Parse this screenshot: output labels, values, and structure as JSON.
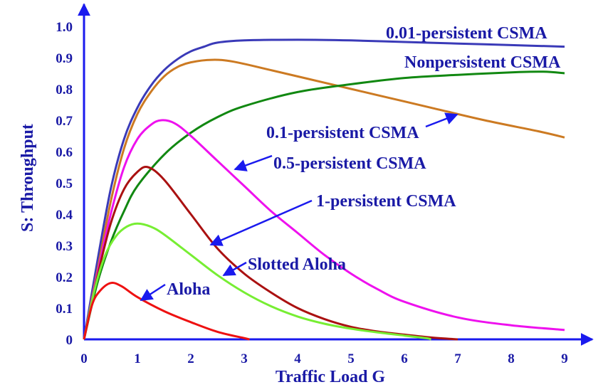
{
  "chart_data": {
    "type": "line",
    "title": "",
    "xlabel": "Traffic Load G",
    "ylabel": "S: Throughput",
    "xlim": [
      0,
      9.5
    ],
    "ylim": [
      0,
      1.05
    ],
    "x_ticks": [
      "0",
      "1",
      "2",
      "3",
      "4",
      "5",
      "6",
      "7",
      "8",
      "9"
    ],
    "y_ticks": [
      "0",
      "0.1",
      "0.2",
      "0.3",
      "0.4",
      "0.5",
      "0.6",
      "0.7",
      "0.8",
      "0.9",
      "1.0"
    ],
    "grid": false,
    "series": [
      {
        "name": "0.01-persistent CSMA",
        "color": "#3a3ab8",
        "points": [
          [
            0,
            0
          ],
          [
            0.25,
            0.25
          ],
          [
            0.5,
            0.48
          ],
          [
            0.75,
            0.64
          ],
          [
            1.0,
            0.74
          ],
          [
            1.25,
            0.81
          ],
          [
            1.5,
            0.86
          ],
          [
            1.75,
            0.895
          ],
          [
            2.0,
            0.92
          ],
          [
            2.25,
            0.935
          ],
          [
            2.5,
            0.948
          ],
          [
            3.0,
            0.955
          ],
          [
            4.0,
            0.957
          ],
          [
            5.0,
            0.955
          ],
          [
            6.0,
            0.95
          ],
          [
            7.0,
            0.945
          ],
          [
            8.0,
            0.94
          ],
          [
            9.0,
            0.935
          ]
        ]
      },
      {
        "name": "Nonpersistent CSMA",
        "color": "#cc7a22",
        "points": [
          [
            0,
            0
          ],
          [
            0.25,
            0.22
          ],
          [
            0.5,
            0.44
          ],
          [
            0.75,
            0.61
          ],
          [
            1.0,
            0.72
          ],
          [
            1.25,
            0.79
          ],
          [
            1.5,
            0.84
          ],
          [
            1.75,
            0.87
          ],
          [
            2.0,
            0.885
          ],
          [
            2.4,
            0.893
          ],
          [
            2.8,
            0.887
          ],
          [
            3.5,
            0.86
          ],
          [
            4.5,
            0.82
          ],
          [
            5.5,
            0.78
          ],
          [
            6.5,
            0.74
          ],
          [
            7.5,
            0.7
          ],
          [
            8.5,
            0.665
          ],
          [
            9.0,
            0.645
          ]
        ]
      },
      {
        "name": "0.1-persistent CSMA",
        "color": "#118811",
        "points": [
          [
            0,
            0
          ],
          [
            0.25,
            0.18
          ],
          [
            0.5,
            0.31
          ],
          [
            0.75,
            0.41
          ],
          [
            1.0,
            0.49
          ],
          [
            1.5,
            0.59
          ],
          [
            2.0,
            0.66
          ],
          [
            2.5,
            0.71
          ],
          [
            3.0,
            0.745
          ],
          [
            4.0,
            0.79
          ],
          [
            5.0,
            0.815
          ],
          [
            6.0,
            0.835
          ],
          [
            7.0,
            0.845
          ],
          [
            8.0,
            0.853
          ],
          [
            8.6,
            0.855
          ],
          [
            9.0,
            0.85
          ]
        ]
      },
      {
        "name": "0.5-persistent CSMA",
        "color": "#ee11ee",
        "points": [
          [
            0,
            0
          ],
          [
            0.25,
            0.21
          ],
          [
            0.5,
            0.4
          ],
          [
            0.75,
            0.55
          ],
          [
            1.0,
            0.64
          ],
          [
            1.25,
            0.685
          ],
          [
            1.45,
            0.7
          ],
          [
            1.7,
            0.69
          ],
          [
            2.0,
            0.65
          ],
          [
            2.5,
            0.57
          ],
          [
            3.0,
            0.49
          ],
          [
            3.5,
            0.41
          ],
          [
            4.0,
            0.34
          ],
          [
            4.5,
            0.27
          ],
          [
            5.0,
            0.21
          ],
          [
            5.5,
            0.16
          ],
          [
            6.0,
            0.12
          ],
          [
            7.0,
            0.07
          ],
          [
            8.0,
            0.045
          ],
          [
            9.0,
            0.03
          ]
        ]
      },
      {
        "name": "1-persistent CSMA",
        "color": "#aa1111",
        "points": [
          [
            0,
            0
          ],
          [
            0.25,
            0.2
          ],
          [
            0.5,
            0.37
          ],
          [
            0.75,
            0.48
          ],
          [
            1.0,
            0.535
          ],
          [
            1.2,
            0.55
          ],
          [
            1.5,
            0.51
          ],
          [
            2.0,
            0.4
          ],
          [
            2.5,
            0.29
          ],
          [
            3.0,
            0.21
          ],
          [
            3.5,
            0.15
          ],
          [
            4.0,
            0.1
          ],
          [
            4.5,
            0.065
          ],
          [
            5.0,
            0.04
          ],
          [
            5.5,
            0.025
          ],
          [
            6.0,
            0.015
          ],
          [
            6.5,
            0.006
          ],
          [
            7.0,
            0.0
          ]
        ]
      },
      {
        "name": "Slotted Aloha",
        "color": "#77ee33",
        "points": [
          [
            0,
            0
          ],
          [
            0.2,
            0.16
          ],
          [
            0.4,
            0.27
          ],
          [
            0.6,
            0.33
          ],
          [
            0.8,
            0.36
          ],
          [
            1.0,
            0.37
          ],
          [
            1.25,
            0.36
          ],
          [
            1.5,
            0.335
          ],
          [
            2.0,
            0.27
          ],
          [
            2.5,
            0.205
          ],
          [
            3.0,
            0.15
          ],
          [
            3.5,
            0.106
          ],
          [
            4.0,
            0.073
          ],
          [
            4.5,
            0.05
          ],
          [
            5.0,
            0.034
          ],
          [
            5.5,
            0.022
          ],
          [
            6.0,
            0.012
          ],
          [
            6.4,
            0.004
          ],
          [
            6.5,
            0.0
          ]
        ]
      },
      {
        "name": "Aloha",
        "color": "#ee1111",
        "points": [
          [
            0,
            0
          ],
          [
            0.15,
            0.11
          ],
          [
            0.3,
            0.155
          ],
          [
            0.5,
            0.18
          ],
          [
            0.7,
            0.17
          ],
          [
            1.0,
            0.135
          ],
          [
            1.5,
            0.09
          ],
          [
            2.0,
            0.055
          ],
          [
            2.5,
            0.024
          ],
          [
            3.0,
            0.004
          ],
          [
            3.1,
            0.0
          ]
        ]
      }
    ],
    "annotations": [
      {
        "text": "0.01-persistent CSMA"
      },
      {
        "text": "Nonpersistent CSMA"
      },
      {
        "text": "0.1-persistent CSMA"
      },
      {
        "text": "0.5-persistent CSMA"
      },
      {
        "text": "1-persistent CSMA"
      },
      {
        "text": "Slotted Aloha"
      },
      {
        "text": "Aloha"
      }
    ]
  }
}
